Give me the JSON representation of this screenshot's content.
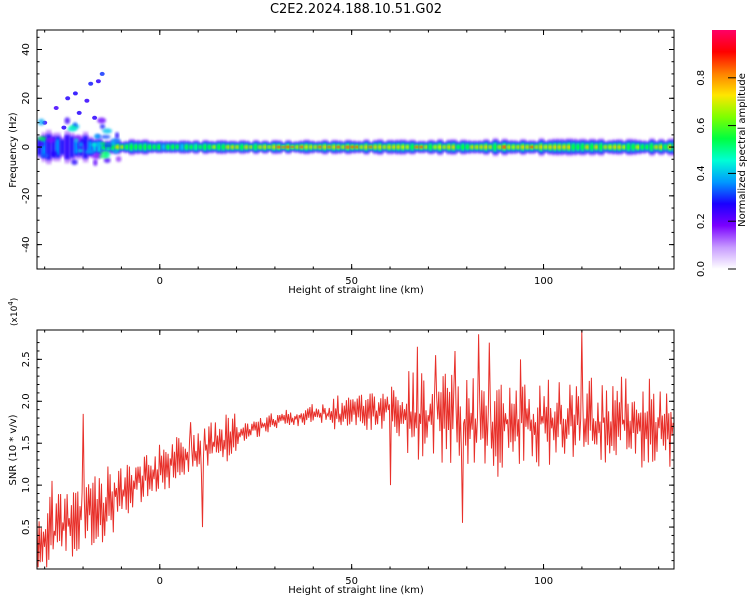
{
  "title": "C2E2.2024.188.10.51.G02",
  "chart_data": [
    {
      "type": "heatmap",
      "xlabel": "Height of straight line (km)",
      "ylabel": "Frequency (Hz)",
      "xlim": [
        -32,
        134
      ],
      "ylim": [
        -50,
        48
      ],
      "xticks": [
        0,
        50,
        100
      ],
      "yticks": [
        -40,
        -20,
        0,
        20,
        40
      ],
      "colorbar": {
        "label": "Normalized spectral amplitude",
        "range": [
          0,
          1
        ],
        "ticks": [
          "0.0",
          "0.2",
          "0.4",
          "0.6",
          "0.8"
        ],
        "colors": [
          "#ffffff",
          "#c79bff",
          "#7a00ff",
          "#1a00ff",
          "#0099ff",
          "#00ffd5",
          "#00ff40",
          "#7fff00",
          "#ffe600",
          "#ff8000",
          "#ff0000",
          "#ff0066"
        ]
      },
      "band_center_hz": 0,
      "band_halfwidth_hz": [
        [
          -32,
          6
        ],
        [
          -20,
          5
        ],
        [
          -15,
          3
        ],
        [
          0,
          2.5
        ],
        [
          50,
          2.5
        ],
        [
          60,
          3
        ],
        [
          100,
          3
        ],
        [
          134,
          3
        ]
      ],
      "band_amplitude_profile": [
        [
          -32,
          0.35
        ],
        [
          -20,
          0.3
        ],
        [
          -12,
          0.75
        ],
        [
          0,
          0.55
        ],
        [
          10,
          0.6
        ],
        [
          20,
          0.7
        ],
        [
          30,
          0.9
        ],
        [
          50,
          0.95
        ],
        [
          62,
          0.85
        ],
        [
          80,
          0.8
        ],
        [
          100,
          0.8
        ],
        [
          134,
          0.75
        ]
      ],
      "scatter_streaks": [
        [
          -30,
          10
        ],
        [
          -27,
          16
        ],
        [
          -24,
          20
        ],
        [
          -22,
          22
        ],
        [
          -19,
          19
        ],
        [
          -18,
          26
        ],
        [
          -16,
          27
        ],
        [
          -15,
          30
        ],
        [
          -25,
          8
        ],
        [
          -21,
          14
        ],
        [
          -17,
          12
        ]
      ]
    },
    {
      "type": "line",
      "xlabel": "Height of straight line (km)",
      "ylabel": "SNR (10 * v/v)",
      "scale_label": "(x10",
      "scale_exp": "4",
      "scale_suffix": ")",
      "xlim": [
        -32,
        134
      ],
      "ylim": [
        0,
        2.85
      ],
      "xticks": [
        0,
        50,
        100
      ],
      "yticks": [
        "0.5",
        "1.0",
        "1.5",
        "2.0",
        "2.5"
      ],
      "color": "#e8302a",
      "trend_x": [
        -32,
        -20,
        -12,
        0,
        10,
        20,
        30,
        40,
        50,
        60,
        80,
        100,
        120,
        134
      ],
      "trend_y": [
        0.35,
        0.6,
        0.85,
        1.2,
        1.4,
        1.6,
        1.75,
        1.85,
        1.85,
        1.9,
        1.75,
        1.75,
        1.75,
        1.7
      ],
      "spikes": [
        {
          "x": -28,
          "y": 1.05
        },
        {
          "x": -20,
          "y": 1.85
        },
        {
          "x": 8,
          "y": 1.75
        },
        {
          "x": 11,
          "y": 0.5
        },
        {
          "x": 67,
          "y": 2.65
        },
        {
          "x": 72,
          "y": 2.55
        },
        {
          "x": 77,
          "y": 2.6
        },
        {
          "x": 79,
          "y": 0.55
        },
        {
          "x": 83,
          "y": 2.8
        },
        {
          "x": 86,
          "y": 2.7
        },
        {
          "x": 110,
          "y": 2.85
        },
        {
          "x": 60,
          "y": 1.0
        },
        {
          "x": 88,
          "y": 1.1
        },
        {
          "x": 94,
          "y": 2.5
        }
      ]
    }
  ]
}
